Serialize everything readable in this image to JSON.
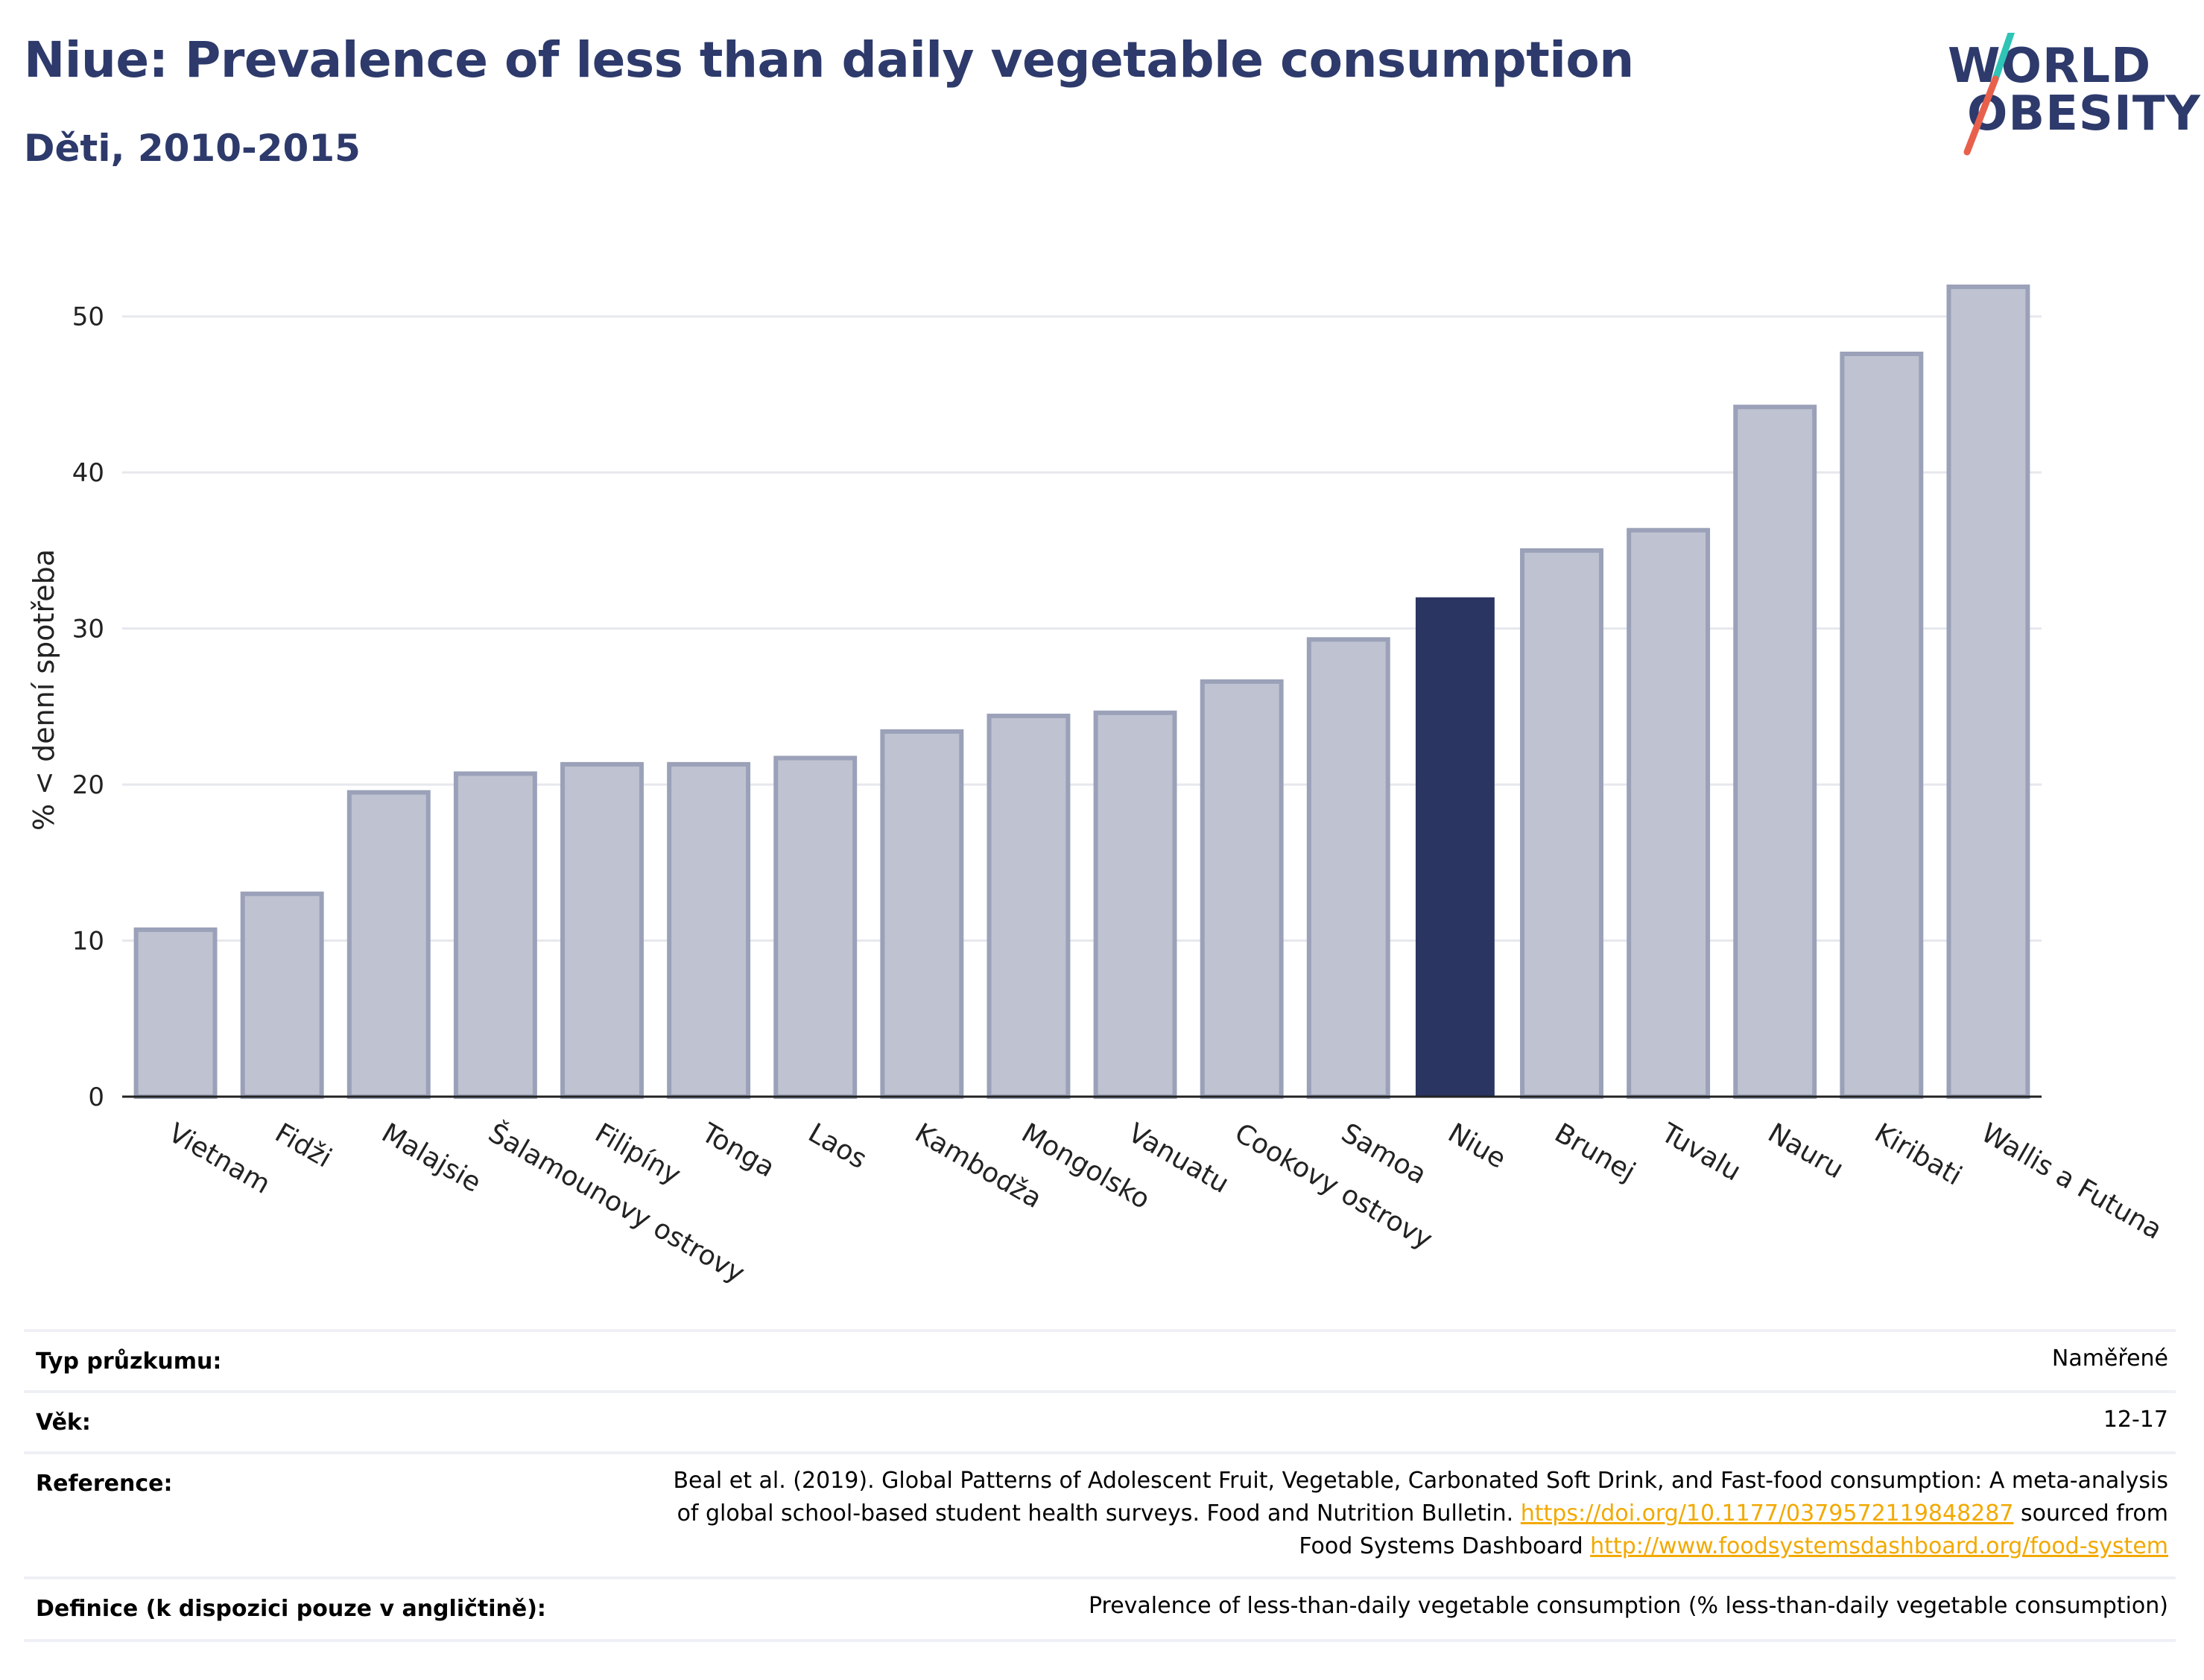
{
  "header": {
    "title": "Niue: Prevalence of less than daily vegetable consumption",
    "subtitle": "Děti, 2010-2015"
  },
  "logo": {
    "line1": "WORLD",
    "line2": "OBESITY",
    "colors": {
      "text": "#2d3a6b",
      "slash_top": "#2ec4b6",
      "slash_bottom": "#e8604c"
    }
  },
  "colors": {
    "bar": "#bfc3d1",
    "bar_border": "#9aa1b8",
    "highlight": "#2b3562",
    "grid": "#e6e8ee",
    "axis": "#222222"
  },
  "chart_data": {
    "type": "bar",
    "title": "Niue: Prevalence of less than daily vegetable consumption",
    "subtitle": "Děti, 2010-2015",
    "ylabel": "% < denní spotřeba",
    "xlabel": "",
    "ylim": [
      0,
      55
    ],
    "yticks": [
      0,
      10,
      20,
      30,
      40,
      50
    ],
    "grid": true,
    "highlight": "Niue",
    "categories": [
      "Vietnam",
      "Fidži",
      "Malajsie",
      "Šalamounovy ostrovy",
      "Filipíny",
      "Tonga",
      "Laos",
      "Kambodža",
      "Mongolsko",
      "Vanuatu",
      "Cookovy ostrovy",
      "Samoa",
      "Niue",
      "Brunej",
      "Tuvalu",
      "Nauru",
      "Kiribati",
      "Wallis a Futuna"
    ],
    "values": [
      10.7,
      13.0,
      19.5,
      20.7,
      21.3,
      21.3,
      21.7,
      23.4,
      24.4,
      24.6,
      26.6,
      29.3,
      32.0,
      35.0,
      36.3,
      44.2,
      47.6,
      51.9
    ]
  },
  "meta": {
    "survey_type": {
      "label": "Typ průzkumu:",
      "value": "Naměřené"
    },
    "age": {
      "label": "Věk:",
      "value": "12-17"
    },
    "reference": {
      "label": "Reference:",
      "line1": "Beal et al. (2019). Global Patterns of Adolescent Fruit, Vegetable, Carbonated Soft Drink, and Fast-food consumption: A meta-analysis",
      "line2_text": "of global school-based student health surveys. Food and Nutrition Bulletin. ",
      "line2_link": "https://doi.org/10.1177/0379572119848287",
      "line2_tail": " sourced from",
      "line3_text": "Food Systems Dashboard ",
      "line3_link": "http://www.foodsystemsdashboard.org/food-system"
    },
    "definition": {
      "label": "Definice (k dispozici pouze v angličtině):",
      "value": "Prevalence of less-than-daily vegetable consumption (% less-than-daily vegetable consumption)"
    }
  }
}
